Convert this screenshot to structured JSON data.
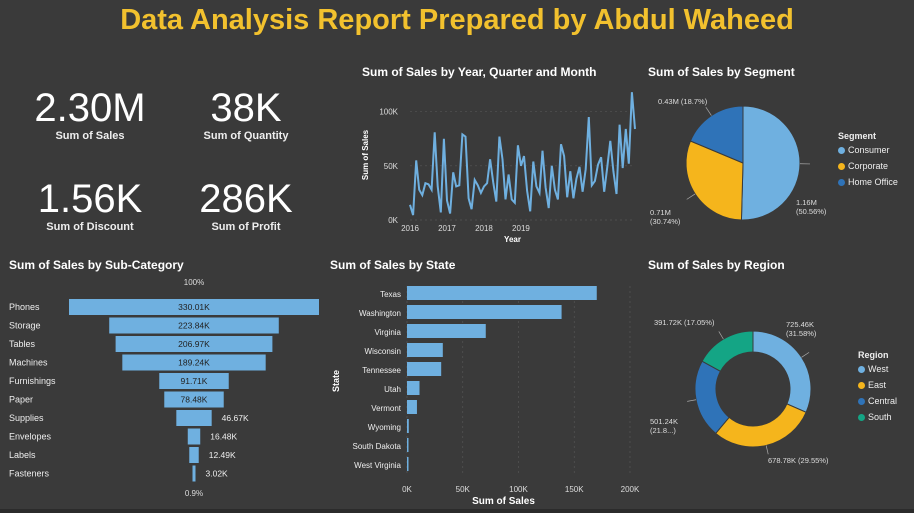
{
  "title": "Data Analysis Report Prepared by Abdul Waheed",
  "colors": {
    "bg": "#3a3a3a",
    "accent": "#f2c12e",
    "blue": "#6fb0e0",
    "consumer": "#6fb0e0",
    "corporate": "#f5b51c",
    "home": "#2f73b8",
    "south": "#14a585"
  },
  "kpis": [
    {
      "value": "2.30M",
      "label": "Sum of Sales"
    },
    {
      "value": "38K",
      "label": "Sum of Quantity"
    },
    {
      "value": "1.56K",
      "label": "Sum of Discount"
    },
    {
      "value": "286K",
      "label": "Sum of Profit"
    }
  ],
  "chart_data": [
    {
      "type": "line",
      "title": "Sum of Sales by Year, Quarter and Month",
      "xlabel": "Year",
      "ylabel": "Sum of Sales",
      "x_ticks": [
        "2016",
        "2017",
        "2018",
        "2019"
      ],
      "y_ticks": [
        "0K",
        "50K",
        "100K"
      ],
      "ylim": [
        0,
        120000
      ],
      "series": [
        {
          "values": [
            14000,
            4500,
            55000,
            28000,
            23000,
            34000,
            33000,
            28000,
            81000,
            31000,
            7000,
            75000,
            18000,
            6000,
            44000,
            31000,
            32000,
            79000,
            77000,
            20000,
            10000,
            37000,
            32000,
            25000,
            31000,
            34000,
            56000,
            35000,
            17000,
            77000,
            56000,
            19000,
            42000,
            19000,
            16000,
            69000,
            50000,
            59000,
            27000,
            8000,
            54000,
            31000,
            25000,
            64000,
            30000,
            11000,
            50000,
            28000,
            19000,
            70000,
            59000,
            21000,
            45000,
            20000,
            38000,
            49000,
            26000,
            47000,
            95000,
            32000,
            36000,
            51000,
            58000,
            26000,
            49000,
            73000,
            45000,
            24000,
            88000,
            48000,
            84000,
            52000,
            118000,
            84000
          ]
        }
      ]
    },
    {
      "type": "pie",
      "title": "Sum of Sales by Segment",
      "legend_title": "Segment",
      "categories": [
        "Consumer",
        "Corporate",
        "Home Office"
      ],
      "values": [
        1.16,
        0.71,
        0.43
      ],
      "data_labels": [
        "1.16M (50.56%)",
        "0.71M (30.74%)",
        "0.43M (18.7%)"
      ],
      "legend": "right"
    },
    {
      "type": "bar",
      "title": "Sum of Sales by Sub-Category",
      "top_label": "100%",
      "bottom_label": "0.9%",
      "categories": [
        "Phones",
        "Storage",
        "Tables",
        "Machines",
        "Furnishings",
        "Paper",
        "Supplies",
        "Envelopes",
        "Labels",
        "Fasteners"
      ],
      "values": [
        330.01,
        223.84,
        206.97,
        189.24,
        91.71,
        78.48,
        46.67,
        16.48,
        12.49,
        3.02
      ],
      "data_labels": [
        "330.01K",
        "223.84K",
        "206.97K",
        "189.24K",
        "91.71K",
        "78.48K",
        "46.67K",
        "16.48K",
        "12.49K",
        "3.02K"
      ]
    },
    {
      "type": "bar",
      "title": "Sum of Sales by State",
      "xlabel": "Sum of Sales",
      "ylabel": "State",
      "x_ticks": [
        "0K",
        "50K",
        "100K",
        "150K",
        "200K"
      ],
      "xlim": [
        0,
        200000
      ],
      "categories": [
        "Texas",
        "Washington",
        "Virginia",
        "Wisconsin",
        "Tennessee",
        "Utah",
        "Vermont",
        "Wyoming",
        "South Dakota",
        "West Virginia"
      ],
      "values": [
        170188,
        138641,
        70637,
        32115,
        30662,
        11220,
        8929,
        1603,
        1316,
        1210
      ]
    },
    {
      "type": "pie",
      "title": "Sum of Sales by Region",
      "legend_title": "Region",
      "categories": [
        "West",
        "East",
        "Central",
        "South"
      ],
      "values": [
        725.46,
        678.78,
        501.24,
        391.72
      ],
      "data_labels": [
        "725.46K (31.58%)",
        "678.78K (29.55%)",
        "501.24K (21.8...)",
        "391.72K (17.05%)"
      ],
      "legend": "right"
    }
  ]
}
